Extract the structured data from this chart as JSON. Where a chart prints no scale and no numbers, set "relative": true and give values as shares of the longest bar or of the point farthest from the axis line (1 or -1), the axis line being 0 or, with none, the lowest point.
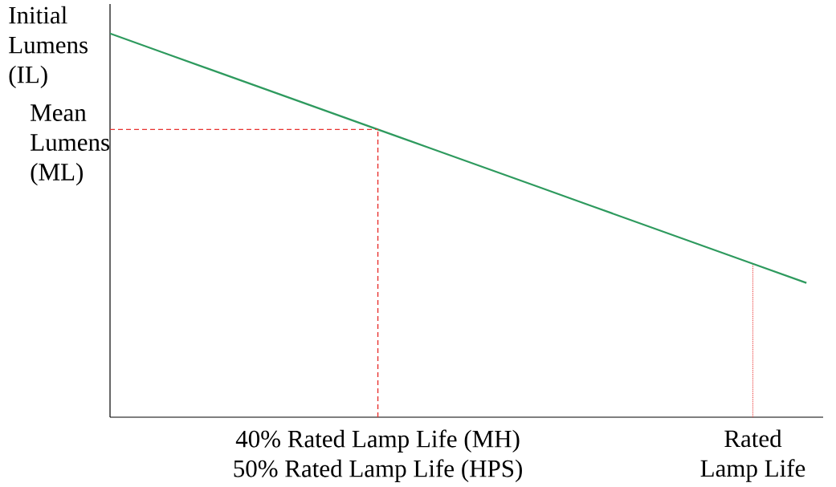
{
  "chart_data": {
    "type": "line",
    "relative": true,
    "line_style": "solid",
    "categories": [
      null,
      null,
      null,
      null,
      null,
      "40% Rated Lamp Life (MH) 50% Rated Lamp Life (HPS)",
      null,
      null,
      null,
      null,
      null,
      null,
      "Rated Lamp Life",
      null
    ],
    "annotations": [
      "Initial Lumens (IL)",
      "Mean Lumens (ML)"
    ],
    "series": [
      {
        "color": "#2e9a5e",
        "values": [
          1,
          0.95,
          0.9,
          0.85,
          0.8,
          0.75,
          0.7,
          0.65,
          0.6,
          0.55,
          0.5,
          0.45,
          0.4,
          0.35
        ]
      },
      {
        "color": "#e8312f",
        "line_style": "dashed",
        "values": [
          0.75,
          0.75,
          0.75,
          0.75,
          0.75,
          0.75,
          null,
          null,
          null,
          null,
          null,
          null,
          null,
          null
        ]
      }
    ],
    "ref_lines": [
      {
        "axis": "x",
        "value": "40% Rated Lamp Life (MH) 50% Rated Lamp Life (HPS)",
        "color": "#e8312f",
        "line_style": "dashed"
      },
      {
        "axis": "x",
        "value": "Rated Lamp Life",
        "color": "#e8312f",
        "line_style": "dotted"
      }
    ]
  }
}
